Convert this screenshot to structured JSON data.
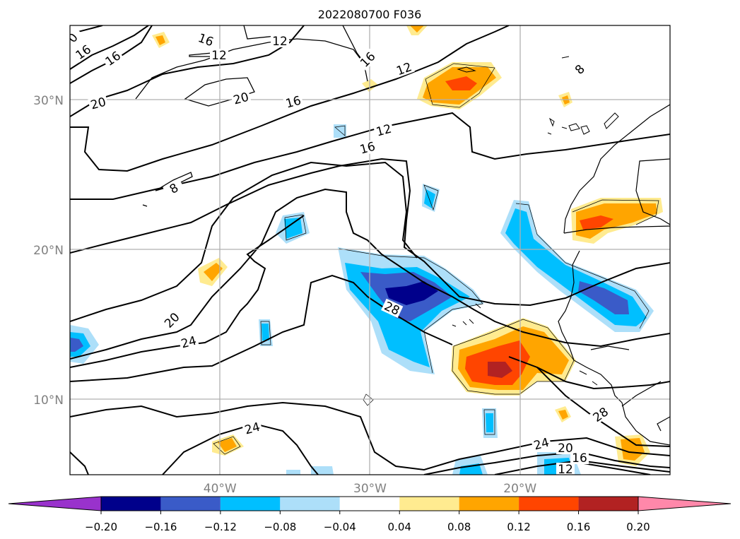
{
  "title": "2022080700 F036",
  "map": {
    "lon_ticks": [
      {
        "lon": -40,
        "label": "40°W"
      },
      {
        "lon": -30,
        "label": "30°W"
      },
      {
        "lon": -20,
        "label": "20°W"
      }
    ],
    "lat_ticks": [
      {
        "lat": 30,
        "label": "30°N"
      },
      {
        "lat": 20,
        "label": "20°N"
      },
      {
        "lat": 10,
        "label": "10°N"
      }
    ],
    "contour_labels": [
      "0",
      "16",
      "16",
      "16",
      "12",
      "12",
      "20",
      "20",
      "16",
      "12",
      "16",
      "16",
      "12",
      "8",
      "8",
      "20",
      "24",
      "28",
      "24",
      "24",
      "20",
      "16",
      "12",
      "28"
    ]
  },
  "colorbar": {
    "colors": [
      "#9932CC",
      "#00008B",
      "#3A5BC8",
      "#00BFFF",
      "#ADDFF9",
      "#FFFFFF",
      "#FFEB90",
      "#FFA500",
      "#FF4500",
      "#B22222",
      "#FF88AA"
    ],
    "tick_labels": [
      "−0.20",
      "−0.16",
      "−0.12",
      "−0.08",
      "−0.04",
      "0.04",
      "0.08",
      "0.12",
      "0.16",
      "0.20"
    ]
  }
}
